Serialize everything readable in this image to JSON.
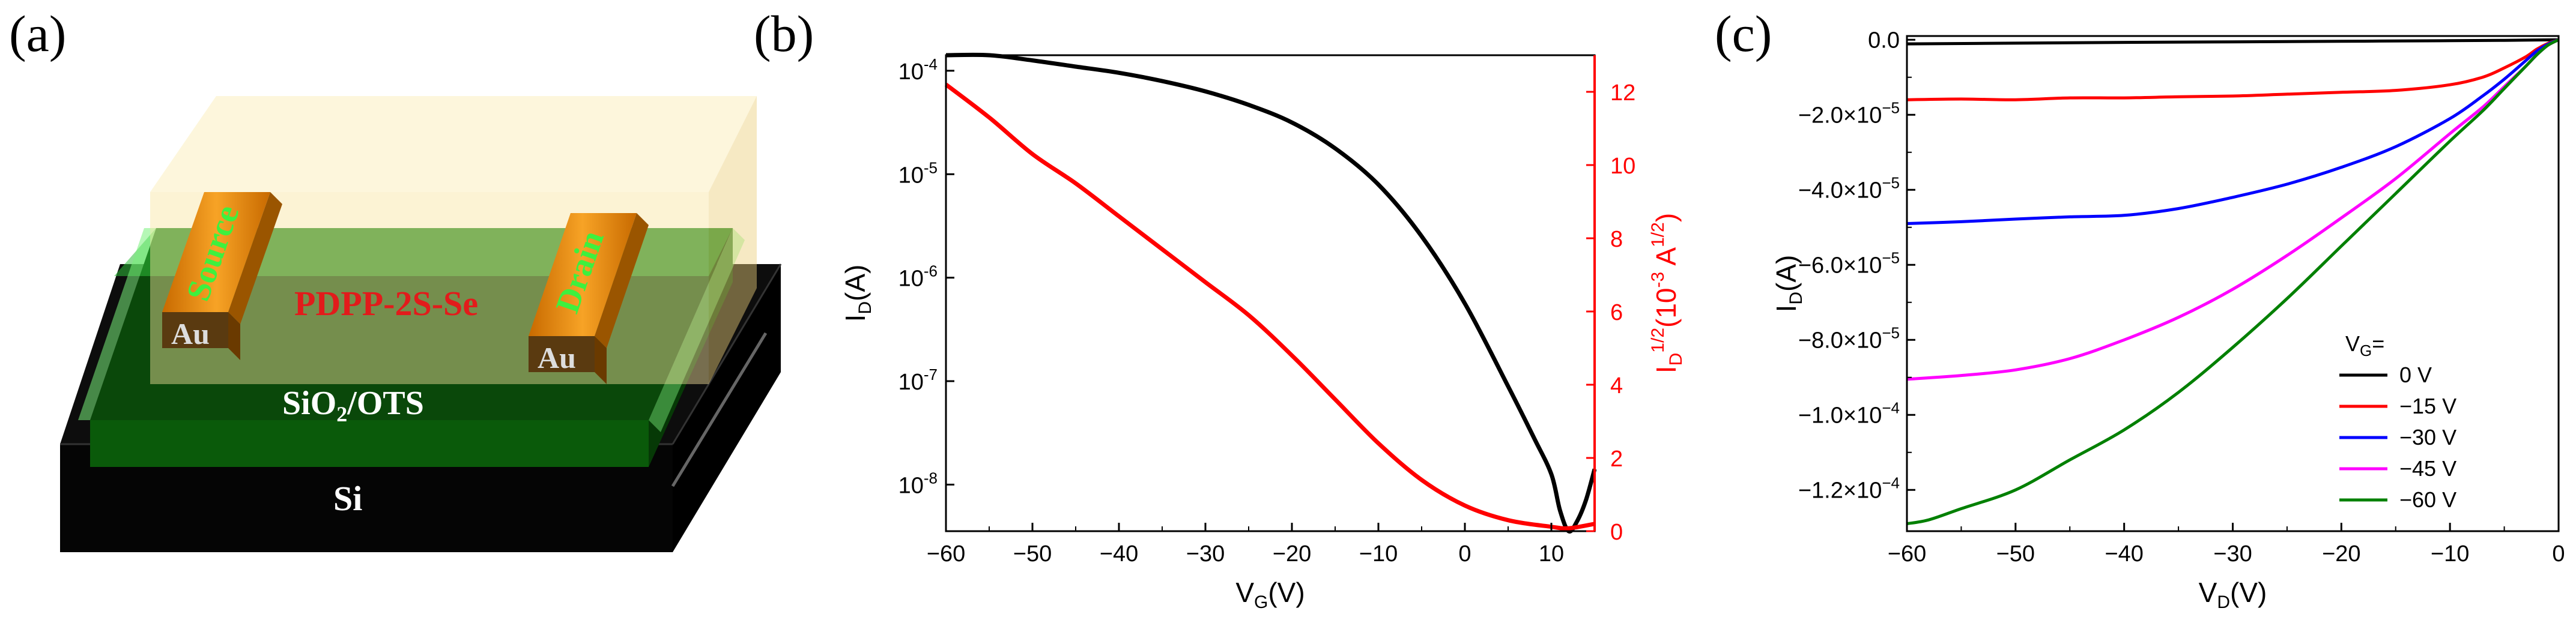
{
  "panel_labels": [
    "(a)",
    "(b)",
    "(c)"
  ],
  "schematic": {
    "labels": {
      "source": "Source",
      "drain": "Drain",
      "semiconductor": "PDPP-2S-Se",
      "au_left": "Au",
      "au_right": "Au",
      "dielectric_main": "SiO",
      "dielectric_sub": "2",
      "dielectric_rest": "/OTS",
      "substrate": "Si"
    },
    "colors": {
      "semiconductor_layer": "#f8e5a0",
      "dielectric_layer": "#0a5a0a",
      "dielectric_glow": "#79f07a",
      "substrate": "#111111",
      "electrode": "#f08c0a",
      "electrode_text": "#3ef03e",
      "semiconductor_text": "#e21b1b",
      "au_text": "#dddddd",
      "dielectric_text": "#ffffff"
    }
  },
  "chart_data": [
    {
      "panel": "(b)",
      "type": "line",
      "title": "",
      "xlabel": {
        "main": "V",
        "sub": "G",
        "rest": "(V)"
      },
      "ylabel_left": {
        "main": "I",
        "sub": "D",
        "rest": "(A)"
      },
      "ylabel_right": {
        "main": "I",
        "sub": "D",
        "sup1": "1/2",
        "mid": "(10",
        "sup2": "-3",
        "unit": " A",
        "sup3": "1/2",
        "close": ")"
      },
      "xlim": [
        -60,
        15
      ],
      "xticks": [
        -60,
        -50,
        -40,
        -30,
        -20,
        -10,
        0,
        10
      ],
      "ylim_left_log10": [
        -8.45,
        -3.85
      ],
      "yticks_left": [
        {
          "exp": -4,
          "base": "10",
          "sup": "-4"
        },
        {
          "exp": -5,
          "base": "10",
          "sup": "-5"
        },
        {
          "exp": -6,
          "base": "10",
          "sup": "-6"
        },
        {
          "exp": -7,
          "base": "10",
          "sup": "-7"
        },
        {
          "exp": -8,
          "base": "10",
          "sup": "-8"
        }
      ],
      "ylim_right": [
        0,
        13
      ],
      "yticks_right": [
        0,
        2,
        4,
        6,
        8,
        10,
        12
      ],
      "right_axis_color": "#ff0000",
      "series": [
        {
          "name": "I_D (log)",
          "axis": "left",
          "color": "#000000",
          "x": [
            -60,
            -55,
            -50,
            -45,
            -40,
            -35,
            -30,
            -25,
            -20,
            -15,
            -10,
            -5,
            0,
            5,
            8,
            10,
            11,
            12,
            13,
            14,
            15
          ],
          "log10_y": [
            -3.8,
            -3.85,
            -3.9,
            -3.96,
            -4.02,
            -4.1,
            -4.2,
            -4.33,
            -4.5,
            -4.75,
            -5.1,
            -5.6,
            -6.25,
            -7.05,
            -7.55,
            -7.9,
            -8.25,
            -8.45,
            -8.35,
            -8.15,
            -7.85
          ]
        },
        {
          "name": "I_D^1/2",
          "axis": "right",
          "color": "#ff0000",
          "x": [
            -60,
            -55,
            -50,
            -45,
            -40,
            -35,
            -30,
            -25,
            -20,
            -15,
            -10,
            -5,
            0,
            5,
            10,
            12,
            15
          ],
          "y": [
            12.2,
            11.3,
            10.3,
            9.5,
            8.6,
            7.7,
            6.8,
            5.9,
            4.8,
            3.6,
            2.4,
            1.4,
            0.7,
            0.3,
            0.12,
            0.08,
            0.2
          ]
        }
      ]
    },
    {
      "panel": "(c)",
      "type": "line",
      "title": "",
      "xlabel": {
        "main": "V",
        "sub": "D",
        "rest": "(V)"
      },
      "ylabel": {
        "main": "I",
        "sub": "D",
        "rest": "(A)"
      },
      "xlim": [
        -60,
        0
      ],
      "xticks": [
        -60,
        -50,
        -40,
        -30,
        -20,
        -10,
        0
      ],
      "ylim": [
        -0.000131,
        1e-06
      ],
      "yticks": [
        {
          "v": 0,
          "label": "0.0",
          "sup": ""
        },
        {
          "v": -2e-05,
          "label": "−2.0×10",
          "sup": "−5"
        },
        {
          "v": -4e-05,
          "label": "−4.0×10",
          "sup": "−5"
        },
        {
          "v": -6e-05,
          "label": "−6.0×10",
          "sup": "−5"
        },
        {
          "v": -8e-05,
          "label": "−8.0×10",
          "sup": "−5"
        },
        {
          "v": -0.0001,
          "label": "−1.0×10",
          "sup": "−4"
        },
        {
          "v": -0.00012,
          "label": "−1.2×10",
          "sup": "−4"
        }
      ],
      "legend": {
        "title_main": "V",
        "title_sub": "G",
        "title_rest": "=",
        "placement": "lower-right"
      },
      "series": [
        {
          "name": "0 V",
          "color": "#000000",
          "x": [
            -60,
            -50,
            -40,
            -30,
            -20,
            -10,
            -5,
            -2,
            0
          ],
          "y": [
            -1.1e-06,
            -9e-07,
            -7e-07,
            -5.5e-07,
            -4e-07,
            -2.5e-07,
            -1.5e-07,
            -5e-08,
            0
          ]
        },
        {
          "name": "−15 V",
          "color": "#ff0000",
          "x": [
            -60,
            -55,
            -50,
            -45,
            -40,
            -35,
            -30,
            -25,
            -20,
            -15,
            -10,
            -7,
            -5,
            -3,
            -2,
            -1,
            0
          ],
          "y": [
            -1.6e-05,
            -1.58e-05,
            -1.6e-05,
            -1.55e-05,
            -1.55e-05,
            -1.52e-05,
            -1.5e-05,
            -1.45e-05,
            -1.4e-05,
            -1.35e-05,
            -1.2e-05,
            -1e-05,
            -7.5e-06,
            -4.5e-06,
            -2.5e-06,
            -1e-06,
            0
          ]
        },
        {
          "name": "−30 V",
          "color": "#0000ff",
          "x": [
            -60,
            -55,
            -50,
            -45,
            -40,
            -35,
            -30,
            -25,
            -20,
            -15,
            -10,
            -7,
            -5,
            -3,
            -2,
            -1,
            0
          ],
          "y": [
            -4.9e-05,
            -4.85e-05,
            -4.78e-05,
            -4.72e-05,
            -4.68e-05,
            -4.5e-05,
            -4.2e-05,
            -3.85e-05,
            -3.4e-05,
            -2.85e-05,
            -2.1e-05,
            -1.5e-05,
            -1.05e-05,
            -5.5e-06,
            -3e-06,
            -1.2e-06,
            0
          ]
        },
        {
          "name": "−45 V",
          "color": "#ff00ff",
          "x": [
            -60,
            -55,
            -50,
            -45,
            -40,
            -35,
            -30,
            -25,
            -20,
            -15,
            -10,
            -7,
            -5,
            -3,
            -2,
            -1,
            0
          ],
          "y": [
            -9.05e-05,
            -8.95e-05,
            -8.8e-05,
            -8.5e-05,
            -8e-05,
            -7.4e-05,
            -6.65e-05,
            -5.75e-05,
            -4.75e-05,
            -3.7e-05,
            -2.5e-05,
            -1.8e-05,
            -1.25e-05,
            -7e-06,
            -4e-06,
            -1.5e-06,
            0
          ]
        },
        {
          "name": "−60 V",
          "color": "#008000",
          "x": [
            -60,
            -58,
            -55,
            -50,
            -45,
            -40,
            -35,
            -30,
            -25,
            -20,
            -15,
            -10,
            -7,
            -5,
            -3,
            -2,
            -1,
            0
          ],
          "y": [
            -0.000129,
            -0.000128,
            -0.000125,
            -0.00012,
            -0.000112,
            -0.000104,
            -9.4e-05,
            -8.2e-05,
            -6.9e-05,
            -5.5e-05,
            -4.1e-05,
            -2.7e-05,
            -1.9e-05,
            -1.3e-05,
            -7e-06,
            -4e-06,
            -1.5e-06,
            0
          ]
        }
      ]
    }
  ]
}
